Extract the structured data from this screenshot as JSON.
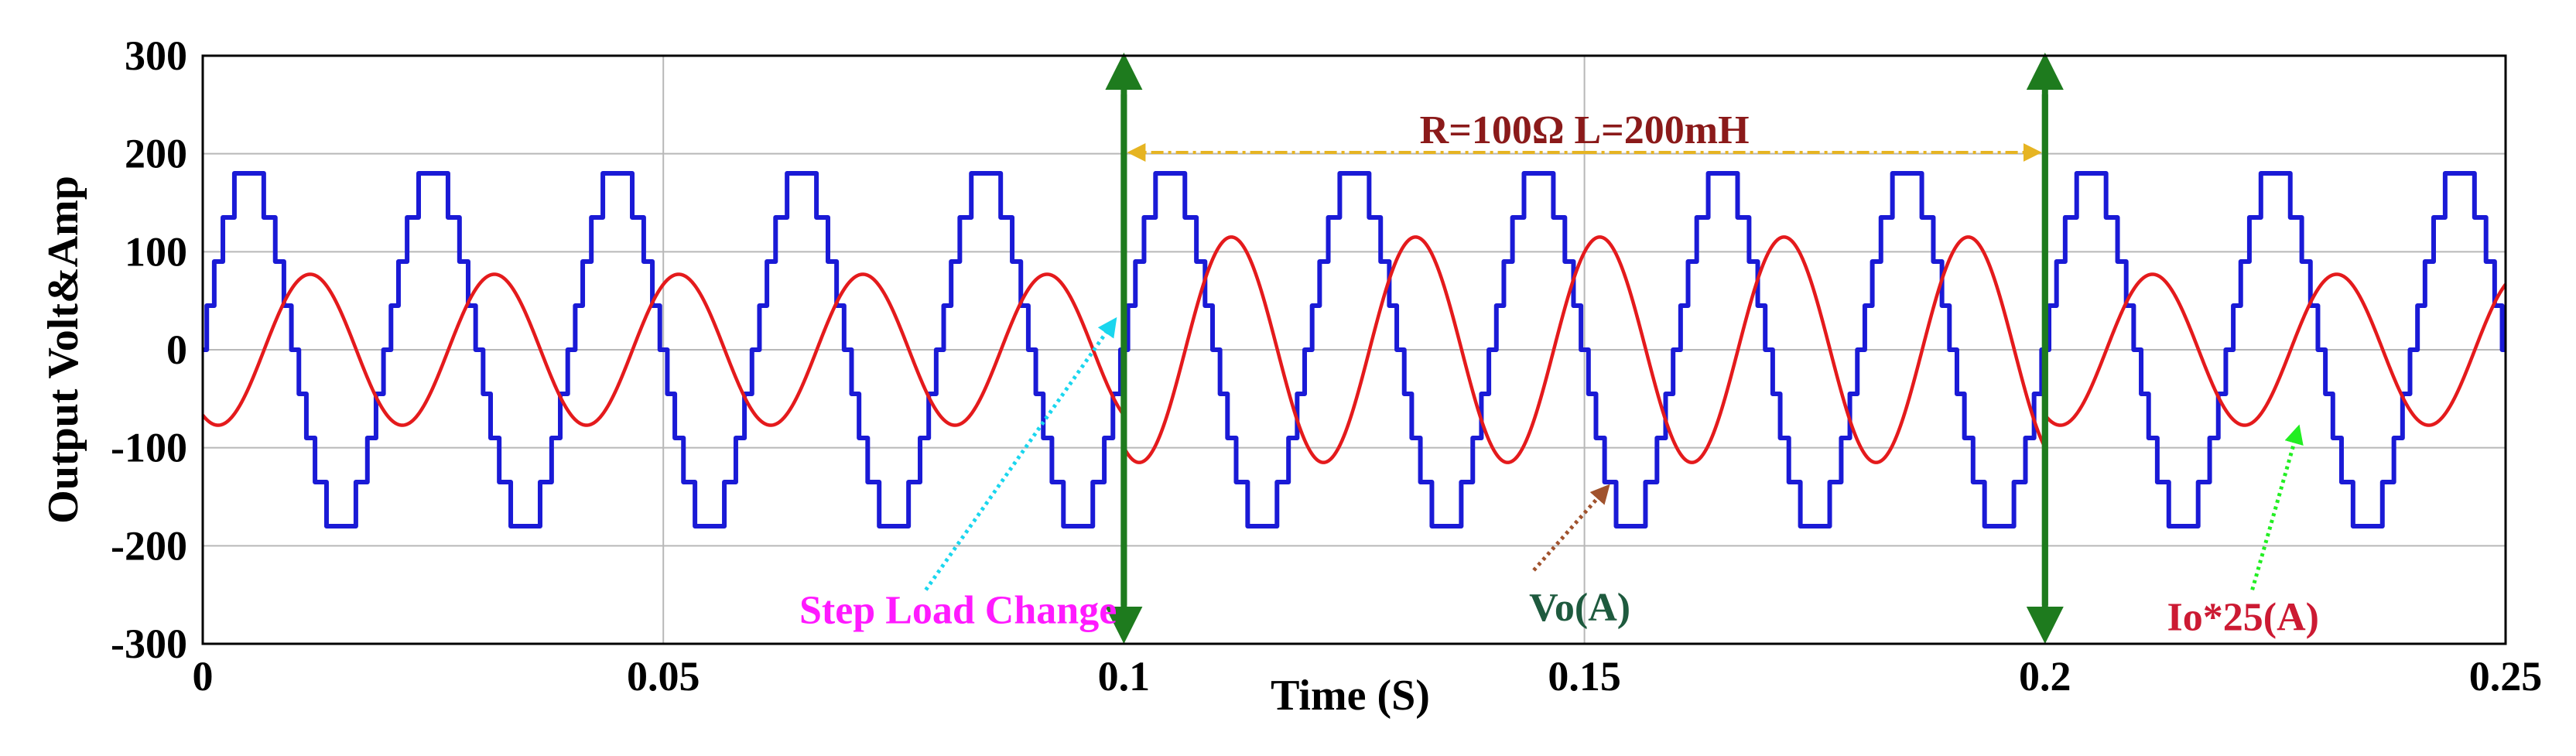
{
  "chart_data": {
    "type": "line",
    "title": "",
    "xlabel": "Time (S)",
    "ylabel": "Output Volt&Amp",
    "xlim": [
      0,
      0.25
    ],
    "ylim": [
      -300,
      300
    ],
    "x_ticks": [
      0,
      0.05,
      0.1,
      0.15,
      0.2,
      0.25
    ],
    "x_tick_labels": [
      "0",
      "0.05",
      "0.1",
      "0.15",
      "0.2",
      "0.25"
    ],
    "y_ticks": [
      300,
      200,
      100,
      0,
      -100,
      -200,
      -300
    ],
    "y_tick_labels": [
      "300",
      "200",
      "100",
      "0",
      "-100",
      "-200",
      "-300"
    ],
    "grid": true,
    "series": [
      {
        "name": "Vo(A)",
        "kind": "staircase-sine",
        "color": "#1a1ad6",
        "frequency_hz": 50,
        "amplitude": 180,
        "phase_deg": 0,
        "levels": 9
      },
      {
        "name": "Io*25(A)",
        "color": "#e41a1c",
        "frequency_hz": 50,
        "phase_deg": -120,
        "segments": [
          {
            "t_start": 0,
            "t_end": 0.1,
            "amplitude": 77
          },
          {
            "t_start": 0.1,
            "t_end": 0.2,
            "amplitude": 115
          },
          {
            "t_start": 0.2,
            "t_end": 0.25,
            "amplitude": 77
          }
        ]
      }
    ],
    "event_markers": [
      {
        "x": 0.1,
        "color": "#1e7b1e"
      },
      {
        "x": 0.2,
        "color": "#1e7b1e"
      }
    ],
    "span_annotation": {
      "text": "R=100Ω L=200mH",
      "from": 0.1,
      "to": 0.2,
      "y": 225,
      "text_color": "#8b1a1a",
      "line_color": "#e6b422"
    },
    "annotations": [
      {
        "text": "Step Load Change",
        "text_color": "#ff1aff",
        "arrow_color": "#1ad6ee",
        "text_x": 0.082,
        "text_y": -265,
        "arrow_from": [
          0.0785,
          -245
        ],
        "arrow_to": [
          0.099,
          30
        ]
      },
      {
        "text": "Vo(A)",
        "text_color": "#1e5a3e",
        "arrow_color": "#a0522d",
        "text_x": 0.1495,
        "text_y": -262,
        "arrow_from": [
          0.1445,
          -225
        ],
        "arrow_to": [
          0.1525,
          -140
        ]
      },
      {
        "text": "Io*25(A)",
        "text_color": "#cc1a33",
        "arrow_color": "#22ee22",
        "text_x": 0.2215,
        "text_y": -272,
        "arrow_from": [
          0.2225,
          -245
        ],
        "arrow_to": [
          0.2275,
          -80
        ]
      }
    ]
  }
}
